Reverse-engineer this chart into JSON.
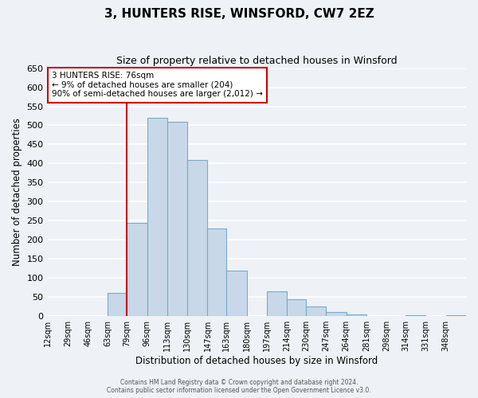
{
  "title": "3, HUNTERS RISE, WINSFORD, CW7 2EZ",
  "subtitle": "Size of property relative to detached houses in Winsford",
  "xlabel": "Distribution of detached houses by size in Winsford",
  "ylabel": "Number of detached properties",
  "bin_labels": [
    "12sqm",
    "29sqm",
    "46sqm",
    "63sqm",
    "79sqm",
    "96sqm",
    "113sqm",
    "130sqm",
    "147sqm",
    "163sqm",
    "180sqm",
    "197sqm",
    "214sqm",
    "230sqm",
    "247sqm",
    "264sqm",
    "281sqm",
    "298sqm",
    "314sqm",
    "331sqm",
    "348sqm"
  ],
  "bin_edges": [
    12,
    29,
    46,
    63,
    79,
    96,
    113,
    130,
    147,
    163,
    180,
    197,
    214,
    230,
    247,
    264,
    281,
    298,
    314,
    331,
    348,
    365
  ],
  "bar_heights": [
    0,
    0,
    0,
    60,
    245,
    520,
    510,
    410,
    230,
    120,
    0,
    65,
    45,
    25,
    10,
    5,
    0,
    0,
    2,
    0,
    2
  ],
  "bar_color": "#c8d8e8",
  "bar_edge_color": "#7aaac8",
  "property_line_x": 79,
  "ylim": [
    0,
    650
  ],
  "yticks": [
    0,
    50,
    100,
    150,
    200,
    250,
    300,
    350,
    400,
    450,
    500,
    550,
    600,
    650
  ],
  "annotation_title": "3 HUNTERS RISE: 76sqm",
  "annotation_line1": "← 9% of detached houses are smaller (204)",
  "annotation_line2": "90% of semi-detached houses are larger (2,012) →",
  "annotation_box_color": "#ffffff",
  "annotation_box_edge": "#cc0000",
  "footer1": "Contains HM Land Registry data © Crown copyright and database right 2024.",
  "footer2": "Contains public sector information licensed under the Open Government Licence v3.0.",
  "background_color": "#eef2f7",
  "grid_color": "#ffffff"
}
